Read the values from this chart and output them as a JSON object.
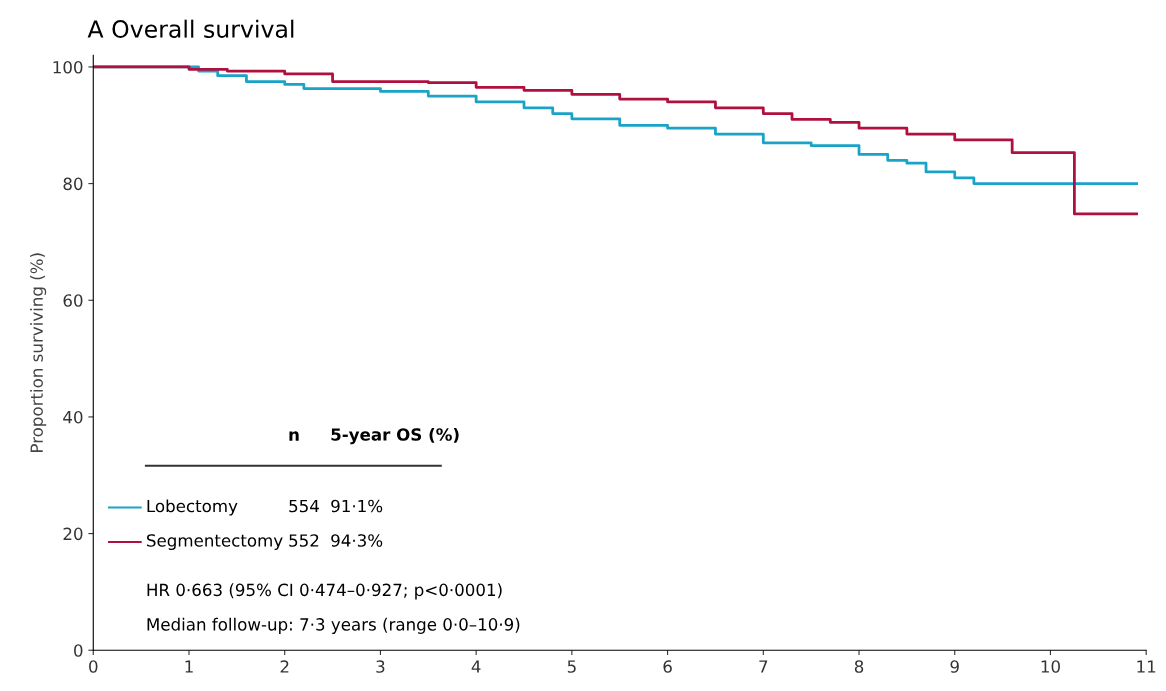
{
  "chart_data": {
    "type": "step",
    "title": "A Overall survival",
    "ylabel": "Proportion surviving (%)",
    "xlim": [
      0,
      11
    ],
    "xticks": [
      0,
      1,
      2,
      3,
      4,
      5,
      6,
      7,
      8,
      9,
      10,
      11
    ],
    "ylim": [
      0,
      102
    ],
    "yticks": [
      0,
      20,
      40,
      60,
      80,
      100
    ],
    "grid": false,
    "legend": "bottom left",
    "series": [
      {
        "name": "Lobectomy",
        "color": "#1aa3c8",
        "x": [
          0,
          1.1,
          1.3,
          1.6,
          2.0,
          2.2,
          3.0,
          3.5,
          4.0,
          4.5,
          4.8,
          5.0,
          5.5,
          6.0,
          6.5,
          7.0,
          7.5,
          8.0,
          8.3,
          8.5,
          8.7,
          9.0,
          9.2,
          10.9
        ],
        "values": [
          100,
          99.3,
          98.5,
          97.5,
          97,
          96.3,
          95.8,
          95,
          94,
          93,
          92,
          91.1,
          90,
          89.5,
          88.5,
          87,
          86.5,
          85,
          84,
          83.5,
          82,
          81,
          80,
          80
        ]
      },
      {
        "name": "Segmentectomy",
        "color": "#b0103f",
        "x": [
          0,
          1.0,
          1.4,
          2.0,
          2.5,
          3.5,
          4.0,
          4.5,
          5.0,
          5.5,
          6.0,
          6.5,
          7.0,
          7.3,
          7.7,
          8.0,
          8.5,
          9.0,
          9.6,
          10.25,
          10.9
        ],
        "values": [
          100,
          99.6,
          99.3,
          98.8,
          97.5,
          97.3,
          96.5,
          96,
          95.3,
          94.5,
          94,
          93,
          92,
          91,
          90.5,
          89.5,
          88.5,
          87.5,
          85.3,
          74.8,
          74.8
        ]
      }
    ],
    "annotations": [
      "n",
      "5-year OS (%)",
      "554",
      "91·1%",
      "552",
      "94·3%",
      "HR 0·663 (95% CI 0·474–0·927; p<0·0001)",
      "Median follow-up: 7·3 years (range 0·0–10·9)"
    ]
  }
}
